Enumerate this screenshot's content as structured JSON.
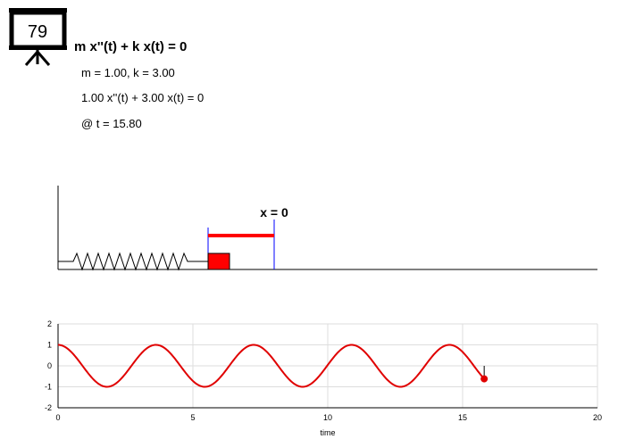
{
  "badge": {
    "number": "79",
    "icon": "projector-screen-icon"
  },
  "equation": {
    "general": "m x''(t) + k x(t) = 0",
    "params": "m = 1.00, k = 3.00",
    "specific": "1.00 x''(t) + 3.00 x(t) = 0",
    "time": "@ t = 15.80"
  },
  "spring_diagram": {
    "equilibrium_label": "x = 0",
    "mass_color": "#ff0000",
    "displacement_color": "#ff0000",
    "marker_color": "#0000ff"
  },
  "chart_data": {
    "type": "line",
    "title": "",
    "xlabel": "time",
    "ylabel": "",
    "xlim": [
      0,
      20
    ],
    "ylim": [
      -2,
      2
    ],
    "xticks": [
      0,
      5,
      10,
      15,
      20
    ],
    "yticks": [
      -2,
      -1,
      0,
      1,
      2
    ],
    "grid": true,
    "series": [
      {
        "function": "cos(sqrt(3) * t)",
        "t_range": [
          0,
          15.8
        ],
        "color": "#e00000"
      }
    ],
    "current_point": {
      "t": 15.8,
      "x": -0.62,
      "color": "#e00000"
    }
  }
}
